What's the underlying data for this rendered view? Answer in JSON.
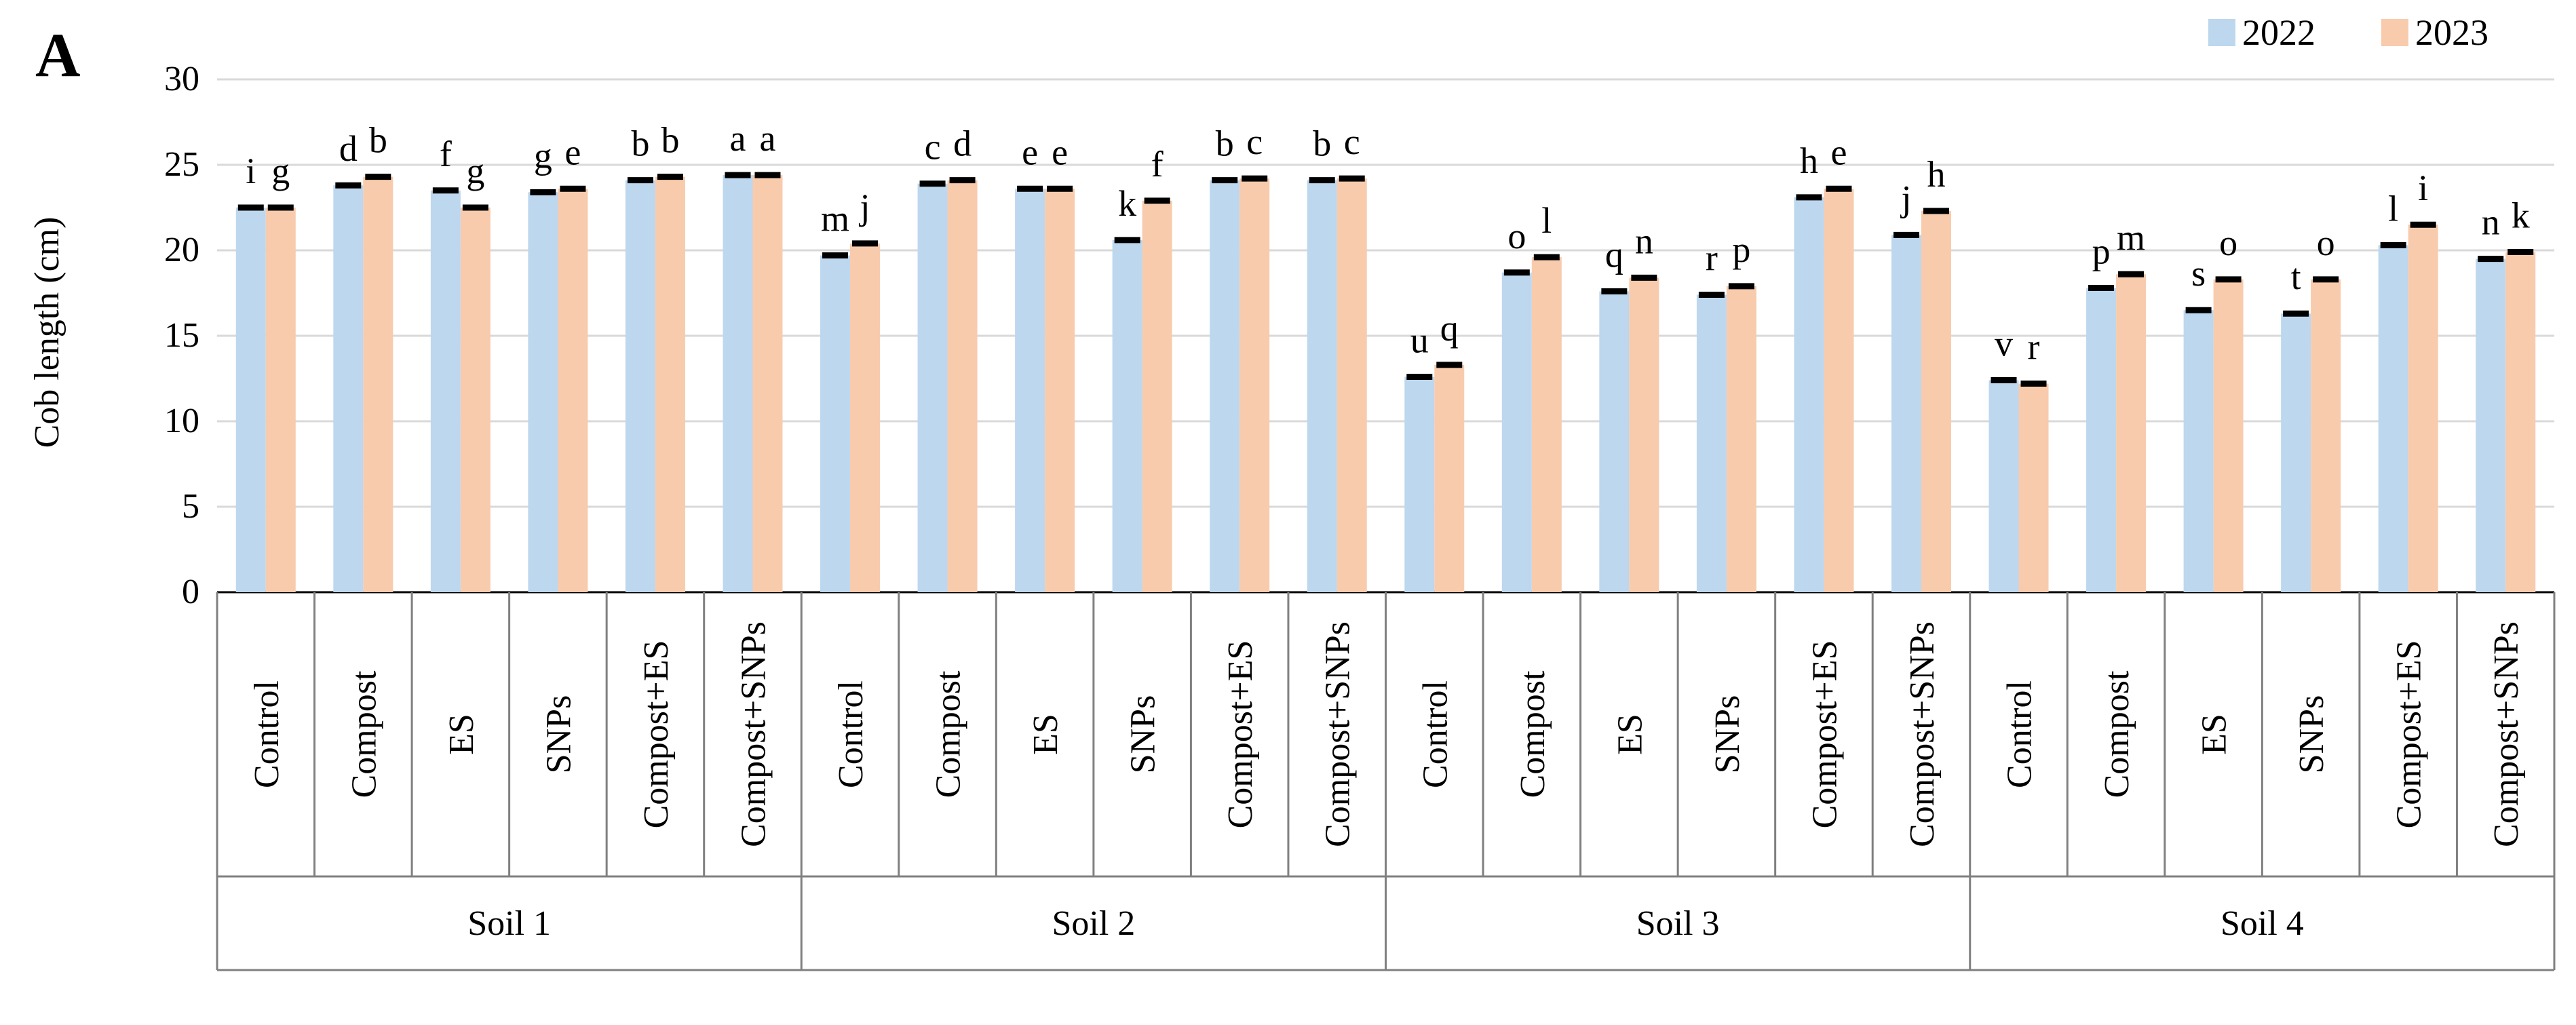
{
  "panel_label": "A",
  "chart_data": {
    "type": "bar",
    "ylabel": "Cob length (cm)",
    "ylim": [
      0,
      30
    ],
    "yticks": [
      0,
      5,
      10,
      15,
      20,
      25,
      30
    ],
    "grid": true,
    "legend_position": "top-right",
    "groups": [
      "Soil 1",
      "Soil 2",
      "Soil 3",
      "Soil 4"
    ],
    "categories": [
      "Control",
      "Compost",
      "ES",
      "SNPs",
      "Compost+ES",
      "Compost+SNPs"
    ],
    "series": [
      {
        "name": "2022",
        "color": "#bdd7ee",
        "values": [
          [
            22.5,
            23.8,
            23.5,
            23.4,
            24.1,
            24.4
          ],
          [
            19.7,
            23.9,
            23.6,
            20.6,
            24.1,
            24.1
          ],
          [
            12.6,
            18.7,
            17.6,
            17.4,
            23.1,
            20.9
          ],
          [
            12.4,
            17.8,
            16.5,
            16.3,
            20.3,
            19.5
          ]
        ],
        "letters": [
          [
            "i",
            "d",
            "f",
            "g",
            "b",
            "a"
          ],
          [
            "m",
            "c",
            "e",
            "k",
            "b",
            "b"
          ],
          [
            "u",
            "o",
            "q",
            "r",
            "h",
            "j"
          ],
          [
            "v",
            "p",
            "s",
            "t",
            "l",
            "n"
          ]
        ]
      },
      {
        "name": "2023",
        "color": "#f8cbad",
        "values": [
          [
            22.5,
            24.3,
            22.5,
            23.6,
            24.3,
            24.4
          ],
          [
            20.4,
            24.1,
            23.6,
            22.9,
            24.2,
            24.2
          ],
          [
            13.3,
            19.6,
            18.4,
            17.9,
            23.6,
            22.3
          ],
          [
            12.2,
            18.6,
            18.3,
            18.3,
            21.5,
            19.9
          ]
        ],
        "letters": [
          [
            "g",
            "b",
            "g",
            "e",
            "b",
            "a"
          ],
          [
            "j",
            "d",
            "e",
            "f",
            "c",
            "c"
          ],
          [
            "q",
            "l",
            "n",
            "p",
            "e",
            "h"
          ],
          [
            "r",
            "m",
            "o",
            "o",
            "i",
            "k"
          ]
        ]
      }
    ]
  }
}
